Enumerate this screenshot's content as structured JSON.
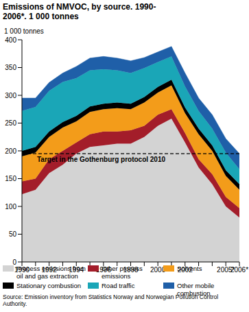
{
  "chart_data": {
    "type": "area",
    "title": "Emissions of NMVOC, by source. 1990-2006*. 1 000 tonnes",
    "y_label": "1 000 tonnes",
    "source": "Source: Emission inventory from Statistics Norway and Norwegian Pollution Control Authority.",
    "stacked": true,
    "grid": false,
    "categories": [
      "1990",
      null,
      "1992",
      null,
      "1994",
      null,
      "1996",
      null,
      "1998",
      null,
      "2000",
      null,
      "2002",
      null,
      null,
      "2005*",
      "2006*"
    ],
    "series": [
      {
        "name": "Process emissions from oil and gas extraction",
        "color": "#d3d3d3",
        "values": [
          122,
          130,
          160,
          175,
          195,
          207,
          210,
          213,
          213,
          225,
          245,
          258,
          215,
          170,
          140,
          100,
          80
        ]
      },
      {
        "name": "Other process emissions",
        "color": "#a31d2a",
        "values": [
          23,
          20,
          25,
          25,
          20,
          23,
          25,
          22,
          24,
          20,
          20,
          17,
          17,
          15,
          18,
          17,
          17
        ]
      },
      {
        "name": "Solvents",
        "color": "#f39c1a",
        "values": [
          45,
          47,
          40,
          42,
          38,
          40,
          40,
          42,
          38,
          42,
          40,
          43,
          36,
          45,
          42,
          38,
          33
        ]
      },
      {
        "name": "Stationary combustion",
        "color": "#000000",
        "values": [
          10,
          10,
          10,
          10,
          10,
          10,
          10,
          10,
          10,
          10,
          10,
          10,
          10,
          10,
          10,
          10,
          10
        ]
      },
      {
        "name": "Road traffic",
        "color": "#1aa6b7",
        "values": [
          72,
          72,
          73,
          72,
          68,
          65,
          62,
          58,
          55,
          52,
          45,
          42,
          38,
          32,
          30,
          32,
          27
        ]
      },
      {
        "name": "Other mobile combustion",
        "color": "#1f5fa8",
        "values": [
          23,
          16,
          15,
          16,
          21,
          22,
          23,
          22,
          22,
          19,
          18,
          18,
          24,
          23,
          25,
          25,
          28
        ]
      }
    ],
    "reference_line": {
      "label": "Target in the Gothenburg protocol 2010",
      "value": 195
    },
    "ylim": [
      0,
      400
    ],
    "yticks": [
      0,
      50,
      100,
      150,
      200,
      250,
      300,
      350,
      400
    ]
  }
}
